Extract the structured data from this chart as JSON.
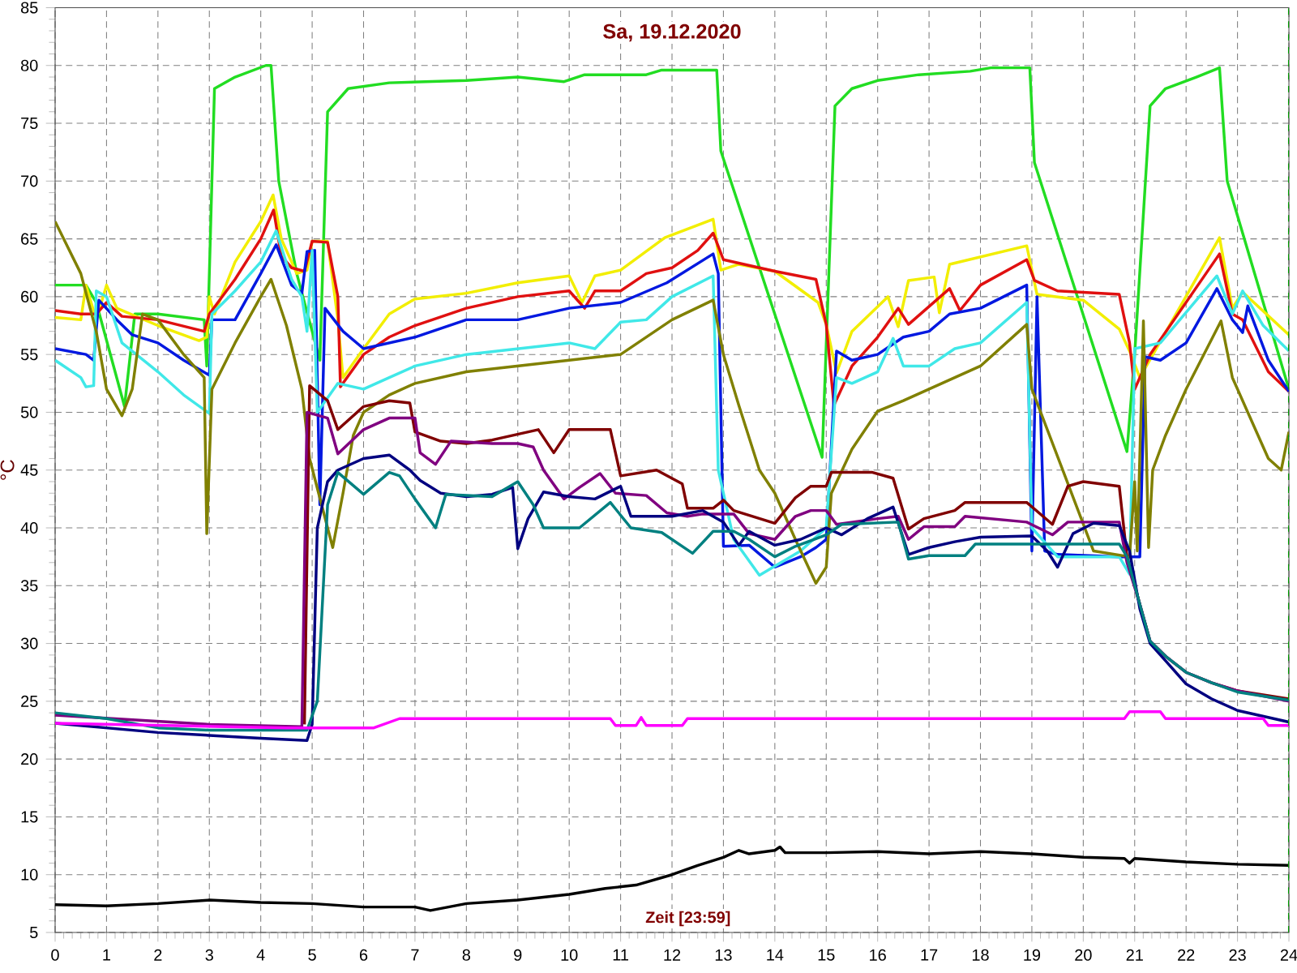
{
  "chart_data": {
    "type": "line",
    "title": "Sa, 19.12.2020",
    "xlabel": "Zeit [23:59]",
    "ylabel": "°C",
    "xlim": [
      0,
      24
    ],
    "ylim": [
      5,
      85
    ],
    "xticks": [
      0,
      1,
      2,
      3,
      4,
      5,
      6,
      7,
      8,
      9,
      10,
      11,
      12,
      13,
      14,
      15,
      16,
      17,
      18,
      19,
      20,
      21,
      22,
      23,
      24
    ],
    "yticks": [
      5,
      10,
      15,
      20,
      25,
      30,
      35,
      40,
      45,
      50,
      55,
      60,
      65,
      70,
      75,
      80,
      85
    ],
    "grid": true,
    "line_style": "solid",
    "ref_lines": [
      {
        "axis": "x",
        "value": 24,
        "color": "#00a000",
        "line_style": "dashed"
      }
    ],
    "series": [
      {
        "color": "#22dd22",
        "x": [
          0,
          0.6,
          0.8,
          1.35,
          1.55,
          2.0,
          2.9,
          2.95,
          3.1,
          3.5,
          4.1,
          4.2,
          4.35,
          4.7,
          5.0,
          5.15,
          5.3,
          5.7,
          6.5,
          8,
          9,
          9.9,
          10.3,
          11.5,
          11.8,
          12.87,
          12.95,
          14.92,
          15.17,
          15.5,
          16,
          16.8,
          17.8,
          18.2,
          18.96,
          19.05,
          20.85,
          21.0,
          21.3,
          21.6,
          22.2,
          22.65,
          22.8,
          24
        ],
        "values": [
          61,
          61,
          59.5,
          50.5,
          58.5,
          58.5,
          58,
          54,
          78,
          79,
          80,
          80,
          70,
          62,
          57,
          54.5,
          76,
          78,
          78.5,
          78.7,
          79,
          78.6,
          79.2,
          79.2,
          79.6,
          79.6,
          72.6,
          46.1,
          76.5,
          78,
          78.7,
          79.2,
          79.5,
          79.8,
          79.8,
          71.6,
          46.6,
          55,
          76.5,
          78,
          79,
          79.8,
          70,
          52
        ]
      },
      {
        "color": "#f2ee00",
        "x": [
          0,
          0.5,
          0.6,
          0.8,
          1.0,
          1.2,
          2,
          2.8,
          2.95,
          3.0,
          3.1,
          3.5,
          4.0,
          4.24,
          4.4,
          4.7,
          4.9,
          5.0,
          5.3,
          5.5,
          5.6,
          6.0,
          6.5,
          7,
          8,
          9,
          10,
          10.25,
          10.5,
          11,
          11.86,
          12.8,
          12.95,
          13.3,
          14,
          14.84,
          15.0,
          15.2,
          15.5,
          16.2,
          16.4,
          16.6,
          17.1,
          17.2,
          17.4,
          18.9,
          19.1,
          20,
          20.7,
          20.9,
          21.1,
          22.65,
          22.9,
          23.1,
          24
        ],
        "values": [
          58.2,
          58,
          61,
          58,
          61,
          59,
          57.5,
          56.2,
          56.5,
          60,
          58.5,
          63,
          66.5,
          68.8,
          65,
          62,
          62.3,
          64.8,
          64.8,
          58,
          53,
          55.5,
          58.5,
          59.8,
          60.3,
          61.2,
          61.8,
          59.5,
          61.8,
          62.3,
          65.1,
          66.7,
          62.3,
          62.8,
          62.2,
          59.5,
          57.6,
          53.4,
          57,
          60,
          57.4,
          61.4,
          61.7,
          58.6,
          62.8,
          64.4,
          60.2,
          59.7,
          57.2,
          55.3,
          53,
          65.1,
          59,
          60.4,
          56.7
        ]
      },
      {
        "color": "#e01010",
        "x": [
          0,
          0.5,
          0.8,
          1.0,
          1.3,
          2,
          2.9,
          3.0,
          3.5,
          4.0,
          4.25,
          4.4,
          4.6,
          4.85,
          5.0,
          5.3,
          5.5,
          5.55,
          6.0,
          6.5,
          7,
          8,
          9,
          10,
          10.3,
          10.5,
          11,
          11.5,
          12,
          12.5,
          12.8,
          13.0,
          14,
          14.8,
          15.0,
          15.15,
          15.5,
          16.0,
          16.4,
          16.6,
          17.4,
          17.6,
          18.0,
          18.9,
          19.05,
          19.5,
          20.7,
          20.9,
          21.0,
          21.3,
          22.65,
          22.9,
          23.1,
          23.6,
          24
        ],
        "values": [
          58.8,
          58.5,
          58.5,
          59.5,
          58.3,
          58,
          57,
          58.5,
          61.5,
          65,
          67.5,
          63.5,
          62.5,
          62.2,
          64.8,
          64.7,
          60,
          52.2,
          55,
          56.5,
          57.5,
          59,
          60,
          60.5,
          59,
          60.5,
          60.5,
          62,
          62.5,
          64,
          65.5,
          63.2,
          62.2,
          61.5,
          57.6,
          50.6,
          54,
          56.5,
          59,
          57.6,
          60.7,
          58.8,
          61,
          63.2,
          61.4,
          60.5,
          60.2,
          56,
          52,
          55,
          63.7,
          58.5,
          58,
          53.5,
          51.8
        ]
      },
      {
        "color": "#0018e0",
        "x": [
          0,
          0.6,
          0.75,
          0.85,
          1.2,
          1.5,
          2,
          2.5,
          3.0,
          3.05,
          3.5,
          4.0,
          4.3,
          4.6,
          4.8,
          4.9,
          5.05,
          5.15,
          5.25,
          5.6,
          6.0,
          7.0,
          8.0,
          9.0,
          10.0,
          11.0,
          11.9,
          12.8,
          12.9,
          13.0,
          13.5,
          14.0,
          14.5,
          14.8,
          15.0,
          15.2,
          15.5,
          16,
          16.5,
          17,
          17.4,
          18,
          18.9,
          19.0,
          19.1,
          19.25,
          19.5,
          20.7,
          21.1,
          21.2,
          21.5,
          22.0,
          22.6,
          22.9,
          23.1,
          23.2,
          23.6,
          24
        ],
        "values": [
          55.5,
          55,
          54.5,
          59.7,
          58,
          56.7,
          56,
          54.5,
          53.2,
          58,
          58,
          62,
          64.5,
          61,
          60.3,
          63.9,
          64,
          42,
          59,
          57,
          55.5,
          56.5,
          58,
          58,
          59,
          59.5,
          61.2,
          63.7,
          62,
          38.4,
          38.5,
          36.6,
          37.5,
          38.3,
          39,
          55.3,
          54.5,
          55,
          56.5,
          57,
          58.5,
          59,
          61,
          38,
          60,
          38,
          37.7,
          37.5,
          37.5,
          54.8,
          54.5,
          56,
          60.7,
          58,
          56.9,
          59.2,
          54.5,
          51.8
        ]
      },
      {
        "color": "#40e8e8",
        "x": [
          0,
          0.5,
          0.6,
          0.75,
          0.8,
          1.0,
          1.3,
          2,
          2.5,
          3.0,
          3.05,
          3.5,
          4.0,
          4.3,
          4.6,
          4.8,
          4.9,
          5.0,
          5.1,
          5.5,
          6,
          6.5,
          7,
          8,
          9,
          10,
          10.5,
          11,
          11.5,
          12,
          12.8,
          12.9,
          13.2,
          13.7,
          14.5,
          15,
          15.2,
          15.5,
          16,
          16.3,
          16.5,
          17,
          17.5,
          18,
          18.9,
          19.0,
          19.5,
          20.7,
          20.9,
          21.0,
          21.5,
          22.6,
          22.9,
          23.1,
          23.5,
          24
        ],
        "values": [
          54.5,
          53,
          52.2,
          52.3,
          60.5,
          60,
          56,
          53.5,
          51.5,
          49.9,
          58.5,
          60.5,
          63,
          65.7,
          61.5,
          60,
          57,
          64,
          50,
          52.5,
          52,
          53,
          54,
          55,
          55.5,
          56,
          55.5,
          57.8,
          58,
          60,
          61.8,
          45,
          39,
          35.9,
          38,
          40,
          53,
          52.5,
          53.5,
          56.4,
          54,
          54,
          55.5,
          56,
          59.5,
          40,
          37.5,
          37.5,
          36,
          55.5,
          56,
          61.8,
          58.5,
          60.5,
          57.5,
          55.3
        ]
      },
      {
        "color": "#808000",
        "x": [
          0,
          0.5,
          0.8,
          1.0,
          1.3,
          1.5,
          1.7,
          2,
          2.5,
          2.9,
          2.95,
          3.05,
          3.5,
          4,
          4.2,
          4.5,
          4.8,
          4.95,
          5.4,
          5.6,
          5.8,
          6.0,
          6.5,
          7,
          8,
          9,
          10,
          11,
          11.5,
          12,
          12.8,
          13.0,
          13.3,
          13.7,
          14,
          14.4,
          14.8,
          15.0,
          15.1,
          15.5,
          16,
          16.5,
          17,
          17.5,
          18,
          18.9,
          19.0,
          19.6,
          20.2,
          20.9,
          21.0,
          21.05,
          21.17,
          21.27,
          21.35,
          21.6,
          22,
          22.68,
          22.9,
          23.2,
          23.6,
          23.85,
          24
        ],
        "values": [
          66.5,
          62,
          57,
          52,
          49.7,
          52,
          58.5,
          58,
          55,
          53,
          39.5,
          52,
          56,
          60,
          61.5,
          57.5,
          52,
          46,
          38.3,
          43,
          48,
          50,
          51.5,
          52.5,
          53.5,
          54,
          54.5,
          55,
          56.5,
          58,
          59.7,
          55,
          50.6,
          45,
          43,
          39,
          35.2,
          36.6,
          43,
          46.8,
          50.1,
          51,
          52,
          53,
          54,
          57.6,
          52,
          45,
          38,
          37.5,
          44,
          38,
          57.9,
          38.3,
          45,
          48,
          52,
          57.9,
          53,
          50,
          46,
          45,
          48.3
        ]
      },
      {
        "color": "#800000",
        "x": [
          4.85,
          4.95,
          5.3,
          5.5,
          6,
          6.5,
          6.9,
          7.0,
          7.5,
          8,
          8.5,
          9.4,
          9.7,
          10.0,
          10.8,
          11.0,
          11.7,
          12.2,
          12.3,
          12.8,
          13.0,
          13.2,
          14.0,
          14.4,
          14.7,
          15.0,
          15.1,
          15.9,
          16.3,
          16.6,
          16.9,
          17.5,
          17.7,
          18.9,
          19.4,
          19.7,
          20.0,
          20.7,
          20.85,
          21.1,
          21.3,
          21.6,
          22,
          22.5,
          23,
          24
        ],
        "values": [
          23,
          52.3,
          51,
          48.5,
          50.5,
          51,
          50.8,
          48.3,
          47.5,
          47.3,
          47.6,
          48.5,
          46.5,
          48.5,
          48.5,
          44.5,
          45,
          43.8,
          41.7,
          41.7,
          42.4,
          41.5,
          40.4,
          42.6,
          43.6,
          43.6,
          44.8,
          44.8,
          44.3,
          39.9,
          40.8,
          41.5,
          42.2,
          42.2,
          40.3,
          43.6,
          44,
          43.6,
          37.5,
          33.4,
          30.2,
          28.9,
          27.5,
          26.6,
          25.9,
          25.2
        ]
      },
      {
        "color": "#800080",
        "x": [
          0,
          3,
          4.8,
          4.9,
          5.3,
          5.5,
          6.0,
          6.5,
          7.0,
          7.1,
          7.4,
          7.7,
          8.5,
          9.0,
          9.3,
          9.5,
          9.9,
          10.2,
          10.6,
          10.9,
          11.5,
          11.9,
          12.3,
          12.6,
          13.2,
          13.5,
          14.0,
          14.4,
          14.7,
          15.0,
          15.2,
          16.0,
          16.4,
          16.6,
          16.9,
          17.5,
          17.7,
          18.9,
          19.4,
          19.7,
          20.7,
          20.85,
          21.1,
          21.3,
          21.6,
          22,
          22.5,
          23,
          24
        ],
        "values": [
          23.8,
          23,
          22.8,
          50,
          49.5,
          46.4,
          48.5,
          49.5,
          49.5,
          46.5,
          45.5,
          47.5,
          47.3,
          47.3,
          47,
          45,
          42.5,
          43.5,
          44.7,
          43,
          42.8,
          41.3,
          41,
          41.2,
          41.2,
          39.5,
          39,
          41,
          41.5,
          41.5,
          40.3,
          40.8,
          41,
          39,
          40.1,
          40.1,
          41,
          40.5,
          39.4,
          40.5,
          40.5,
          37,
          33.4,
          30.2,
          28.9,
          27.5,
          26.6,
          25.9,
          25.0
        ]
      },
      {
        "color": "#000080",
        "x": [
          0,
          2,
          4,
          4.9,
          5.0,
          5.1,
          5.3,
          5.5,
          6,
          6.5,
          6.9,
          7.1,
          7.5,
          8,
          8.5,
          8.9,
          9.0,
          9.2,
          9.5,
          10,
          10.5,
          11,
          11.2,
          12,
          12.6,
          13.0,
          13.3,
          13.5,
          14,
          14.5,
          15,
          15.3,
          15.8,
          16.3,
          16.6,
          17,
          17.5,
          18,
          19,
          19.3,
          19.5,
          19.8,
          20.2,
          20.7,
          20.9,
          21.1,
          21.3,
          21.6,
          22,
          22.5,
          23,
          24
        ],
        "values": [
          23.1,
          22.3,
          21.8,
          21.6,
          23,
          40,
          44,
          45,
          46,
          46.3,
          45,
          44.1,
          43,
          42.7,
          42.9,
          43.5,
          38.2,
          40.8,
          43.1,
          42.7,
          42.5,
          43.6,
          41,
          41,
          41.5,
          40.5,
          38.5,
          39.7,
          38.5,
          39,
          40,
          39.4,
          40.8,
          41.8,
          37.7,
          38.3,
          38.8,
          39.2,
          39.3,
          38,
          36.6,
          39.5,
          40.4,
          40.2,
          38,
          33,
          30,
          28.5,
          26.5,
          25.2,
          24.2,
          23.2
        ]
      },
      {
        "color": "#008080",
        "x": [
          0,
          1,
          2,
          3,
          4,
          4.9,
          5.1,
          5.3,
          5.5,
          6.0,
          6.5,
          6.7,
          7.0,
          7.4,
          7.6,
          8.5,
          9.0,
          9.3,
          9.5,
          10.2,
          10.8,
          11.2,
          11.8,
          12.4,
          12.8,
          13.2,
          13.5,
          14.0,
          14.4,
          15.0,
          15.3,
          16.4,
          16.6,
          17.0,
          17.7,
          17.9,
          20.7,
          20.85,
          21.1,
          21.3,
          21.6,
          22,
          22.5,
          23,
          24
        ],
        "values": [
          24,
          23.5,
          22.7,
          22.5,
          22.5,
          22.5,
          25,
          42,
          44.8,
          42.9,
          44.8,
          44.5,
          42.5,
          40,
          42.9,
          42.7,
          44,
          42,
          40,
          40,
          42.2,
          40,
          39.6,
          37.8,
          39.7,
          39.7,
          39,
          37.5,
          38.4,
          39.4,
          40.3,
          40.5,
          37.3,
          37.6,
          37.6,
          38.6,
          38.6,
          37.5,
          33.4,
          30.2,
          28.9,
          27.5,
          26.6,
          25.8,
          25.1
        ]
      },
      {
        "color": "#ff00ff",
        "x": [
          0,
          4.5,
          6.2,
          6.7,
          10.8,
          10.9,
          11.3,
          11.4,
          11.5,
          12.2,
          12.3,
          20.8,
          20.9,
          21.5,
          21.6,
          23.5,
          23.6,
          24
        ],
        "values": [
          23.1,
          22.7,
          22.7,
          23.5,
          23.5,
          22.9,
          22.9,
          23.6,
          22.9,
          22.9,
          23.5,
          23.5,
          24.1,
          24.1,
          23.5,
          23.5,
          22.9,
          22.9
        ]
      },
      {
        "color": "#000000",
        "x": [
          0,
          1,
          2,
          3,
          4,
          5,
          6,
          7,
          7.3,
          8,
          9,
          10,
          10.7,
          11.3,
          12,
          12.5,
          13,
          13.3,
          13.5,
          14,
          14.1,
          14.2,
          15,
          16,
          17,
          18,
          19,
          20,
          20.8,
          20.9,
          21,
          22,
          23,
          24
        ],
        "values": [
          7.4,
          7.3,
          7.5,
          7.8,
          7.6,
          7.5,
          7.2,
          7.2,
          6.9,
          7.5,
          7.8,
          8.3,
          8.8,
          9.1,
          10,
          10.8,
          11.5,
          12.1,
          11.8,
          12.1,
          12.4,
          11.9,
          11.9,
          12,
          11.8,
          12,
          11.8,
          11.5,
          11.4,
          11,
          11.4,
          11.1,
          10.9,
          10.8
        ]
      }
    ]
  }
}
